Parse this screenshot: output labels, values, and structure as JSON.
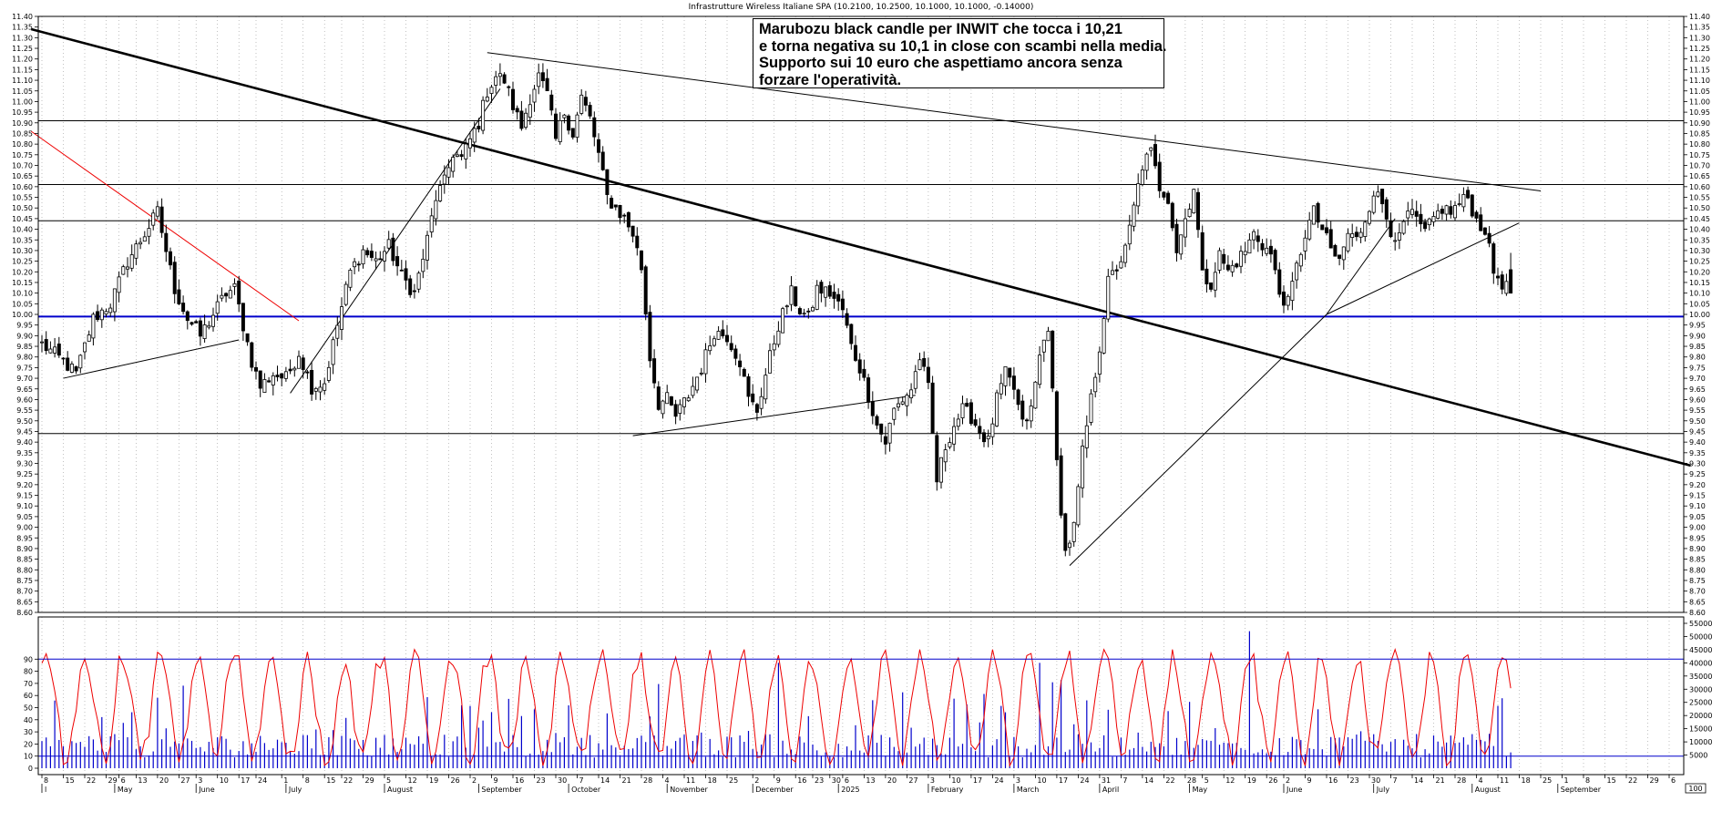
{
  "chart_data": [
    {
      "type": "candlestick",
      "title": "Infrastrutture Wireless  Italiane SPA (10.2100, 10.2500, 10.1000, 10.1000, -0.14000)",
      "ylim": [
        8.6,
        11.4
      ],
      "y_ticks": [
        "11.40",
        "11.35",
        "11.30",
        "11.25",
        "11.20",
        "11.15",
        "11.10",
        "11.05",
        "11.00",
        "10.95",
        "10.90",
        "10.85",
        "10.80",
        "10.75",
        "10.70",
        "10.65",
        "10.60",
        "10.55",
        "10.50",
        "10.45",
        "10.40",
        "10.35",
        "10.30",
        "10.25",
        "10.20",
        "10.15",
        "10.10",
        "10.05",
        "10.00",
        "9.95",
        "9.90",
        "9.85",
        "9.80",
        "9.75",
        "9.70",
        "9.65",
        "9.60",
        "9.55",
        "9.50",
        "9.45",
        "9.40",
        "9.35",
        "9.30",
        "9.25",
        "9.20",
        "9.15",
        "9.10",
        "9.05",
        "9.00",
        "8.95",
        "8.90",
        "8.85",
        "8.80",
        "8.75",
        "8.70",
        "8.65",
        "8.60"
      ],
      "grid": "vertical-dotted",
      "horizontal_levels": [
        10.91,
        10.61,
        10.44,
        9.44
      ],
      "support_level": 9.99,
      "annotation": [
        "Marubozu black candle per INWIT che tocca i 10,21",
        "e torna negativa su 10,1 in close con scambi nella media.",
        "Supporto sui 10 euro che aspettiamo ancora senza",
        "forzare l'operatività."
      ],
      "anchors": [
        [
          0,
          9.86
        ],
        [
          5,
          9.78
        ],
        [
          8,
          9.72
        ],
        [
          12,
          9.98
        ],
        [
          16,
          10.05
        ],
        [
          20,
          10.25
        ],
        [
          24,
          10.38
        ],
        [
          27,
          10.48
        ],
        [
          29,
          10.3
        ],
        [
          31,
          10.12
        ],
        [
          34,
          9.98
        ],
        [
          37,
          9.9
        ],
        [
          40,
          10.0
        ],
        [
          43,
          10.1
        ],
        [
          45,
          10.12
        ],
        [
          47,
          9.95
        ],
        [
          49,
          9.78
        ],
        [
          51,
          9.66
        ],
        [
          54,
          9.72
        ],
        [
          57,
          9.7
        ],
        [
          60,
          9.82
        ],
        [
          63,
          9.66
        ],
        [
          66,
          9.68
        ],
        [
          69,
          9.95
        ],
        [
          72,
          10.2
        ],
        [
          75,
          10.3
        ],
        [
          78,
          10.25
        ],
        [
          81,
          10.32
        ],
        [
          84,
          10.18
        ],
        [
          87,
          10.1
        ],
        [
          90,
          10.35
        ],
        [
          92,
          10.55
        ],
        [
          94,
          10.62
        ],
        [
          96,
          10.76
        ],
        [
          98,
          10.73
        ],
        [
          100,
          10.82
        ],
        [
          102,
          10.9
        ],
        [
          104,
          11.05
        ],
        [
          106,
          11.12
        ],
        [
          108,
          11.1
        ],
        [
          110,
          10.98
        ],
        [
          112,
          10.88
        ],
        [
          114,
          11.02
        ],
        [
          116,
          11.12
        ],
        [
          118,
          11.03
        ],
        [
          120,
          10.82
        ],
        [
          122,
          10.95
        ],
        [
          124,
          10.85
        ],
        [
          126,
          11.02
        ],
        [
          128,
          10.92
        ],
        [
          130,
          10.75
        ],
        [
          132,
          10.55
        ],
        [
          134,
          10.5
        ],
        [
          136,
          10.45
        ],
        [
          138,
          10.38
        ],
        [
          140,
          10.22
        ],
        [
          142,
          9.8
        ],
        [
          144,
          9.58
        ],
        [
          146,
          9.6
        ],
        [
          148,
          9.52
        ],
        [
          151,
          9.62
        ],
        [
          154,
          9.75
        ],
        [
          157,
          9.92
        ],
        [
          160,
          9.9
        ],
        [
          163,
          9.78
        ],
        [
          165,
          9.6
        ],
        [
          167,
          9.55
        ],
        [
          170,
          9.8
        ],
        [
          172,
          9.95
        ],
        [
          175,
          10.1
        ],
        [
          177,
          10.02
        ],
        [
          179,
          9.98
        ],
        [
          181,
          10.12
        ],
        [
          184,
          10.1
        ],
        [
          187,
          10.02
        ],
        [
          189,
          9.85
        ],
        [
          191,
          9.75
        ],
        [
          193,
          9.62
        ],
        [
          195,
          9.48
        ],
        [
          197,
          9.4
        ],
        [
          199,
          9.55
        ],
        [
          201,
          9.6
        ],
        [
          203,
          9.65
        ],
        [
          205,
          9.8
        ],
        [
          207,
          9.65
        ],
        [
          209,
          9.22
        ],
        [
          211,
          9.38
        ],
        [
          213,
          9.48
        ],
        [
          215,
          9.55
        ],
        [
          217,
          9.52
        ],
        [
          219,
          9.45
        ],
        [
          221,
          9.4
        ],
        [
          223,
          9.6
        ],
        [
          225,
          9.72
        ],
        [
          227,
          9.65
        ],
        [
          229,
          9.48
        ],
        [
          231,
          9.55
        ],
        [
          233,
          9.8
        ],
        [
          235,
          9.95
        ],
        [
          237,
          9.3
        ],
        [
          239,
          8.88
        ],
        [
          241,
          9.0
        ],
        [
          243,
          9.35
        ],
        [
          245,
          9.6
        ],
        [
          247,
          9.85
        ],
        [
          249,
          10.15
        ],
        [
          251,
          10.22
        ],
        [
          253,
          10.3
        ],
        [
          255,
          10.5
        ],
        [
          257,
          10.7
        ],
        [
          259,
          10.76
        ],
        [
          261,
          10.6
        ],
        [
          263,
          10.55
        ],
        [
          265,
          10.3
        ],
        [
          267,
          10.45
        ],
        [
          269,
          10.6
        ],
        [
          271,
          10.18
        ],
        [
          273,
          10.15
        ],
        [
          275,
          10.28
        ],
        [
          277,
          10.2
        ],
        [
          279,
          10.25
        ],
        [
          281,
          10.3
        ],
        [
          283,
          10.38
        ],
        [
          285,
          10.33
        ],
        [
          287,
          10.28
        ],
        [
          289,
          10.1
        ],
        [
          291,
          10.05
        ],
        [
          293,
          10.22
        ],
        [
          295,
          10.38
        ],
        [
          297,
          10.48
        ],
        [
          299,
          10.4
        ],
        [
          301,
          10.3
        ],
        [
          303,
          10.25
        ],
        [
          305,
          10.38
        ],
        [
          307,
          10.35
        ],
        [
          309,
          10.45
        ],
        [
          311,
          10.58
        ],
        [
          313,
          10.52
        ],
        [
          315,
          10.4
        ],
        [
          317,
          10.35
        ],
        [
          319,
          10.48
        ],
        [
          321,
          10.44
        ],
        [
          323,
          10.38
        ],
        [
          325,
          10.45
        ],
        [
          327,
          10.5
        ],
        [
          329,
          10.48
        ],
        [
          331,
          10.52
        ],
        [
          333,
          10.55
        ],
        [
          335,
          10.44
        ],
        [
          337,
          10.4
        ],
        [
          339,
          10.2
        ],
        [
          341,
          10.15
        ],
        [
          343,
          10.1
        ]
      ],
      "oscillator": {
        "ylim": [
          0,
          100
        ],
        "y_ticks": [
          "90",
          "80",
          "70",
          "60",
          "50",
          "40",
          "30",
          "20",
          "10",
          "0"
        ],
        "levels": [
          90,
          10
        ]
      },
      "volume": {
        "ylim": [
          0,
          55000
        ],
        "y_ticks": [
          "55000",
          "50000",
          "45000",
          "40000",
          "35000",
          "30000",
          "25000",
          "20000",
          "15000",
          "10000",
          "5000"
        ]
      },
      "x_axis": {
        "day_labels": [
          [
            0,
            "8"
          ],
          [
            5,
            "15"
          ],
          [
            10,
            "22"
          ],
          [
            15,
            "29"
          ],
          [
            18,
            "6"
          ],
          [
            22,
            "13"
          ],
          [
            27,
            "20"
          ],
          [
            32,
            "27"
          ],
          [
            36,
            "3"
          ],
          [
            41,
            "10"
          ],
          [
            46,
            "17"
          ],
          [
            50,
            "24"
          ],
          [
            56,
            "1"
          ],
          [
            61,
            "8"
          ],
          [
            66,
            "15"
          ],
          [
            70,
            "22"
          ],
          [
            75,
            "29"
          ],
          [
            80,
            "5"
          ],
          [
            85,
            "12"
          ],
          [
            90,
            "19"
          ],
          [
            95,
            "26"
          ],
          [
            100,
            "2"
          ],
          [
            105,
            "9"
          ],
          [
            110,
            "16"
          ],
          [
            115,
            "23"
          ],
          [
            120,
            "30"
          ],
          [
            125,
            "7"
          ],
          [
            130,
            "14"
          ],
          [
            135,
            "21"
          ],
          [
            140,
            "28"
          ],
          [
            145,
            "4"
          ],
          [
            150,
            "11"
          ],
          [
            155,
            "18"
          ],
          [
            160,
            "25"
          ],
          [
            166,
            "2"
          ],
          [
            171,
            "9"
          ],
          [
            176,
            "16"
          ],
          [
            180,
            "23"
          ],
          [
            184,
            "30"
          ],
          [
            187,
            "6"
          ],
          [
            192,
            "13"
          ],
          [
            197,
            "20"
          ],
          [
            202,
            "27"
          ],
          [
            207,
            "3"
          ],
          [
            212,
            "10"
          ],
          [
            217,
            "17"
          ],
          [
            222,
            "24"
          ],
          [
            227,
            "3"
          ],
          [
            232,
            "10"
          ],
          [
            237,
            "17"
          ],
          [
            242,
            "24"
          ],
          [
            247,
            "31"
          ],
          [
            252,
            "7"
          ],
          [
            257,
            "14"
          ],
          [
            262,
            "22"
          ],
          [
            267,
            "28"
          ],
          [
            271,
            "5"
          ],
          [
            276,
            "12"
          ],
          [
            281,
            "19"
          ],
          [
            286,
            "26"
          ],
          [
            290,
            "2"
          ],
          [
            295,
            "9"
          ],
          [
            300,
            "16"
          ],
          [
            305,
            "23"
          ],
          [
            310,
            "30"
          ],
          [
            315,
            "7"
          ],
          [
            320,
            "14"
          ],
          [
            325,
            "21"
          ],
          [
            330,
            "28"
          ],
          [
            335,
            "4"
          ],
          [
            340,
            "11"
          ],
          [
            345,
            "18"
          ],
          [
            350,
            "25"
          ],
          [
            355,
            "1"
          ],
          [
            360,
            "8"
          ],
          [
            365,
            "15"
          ],
          [
            370,
            "22"
          ],
          [
            375,
            "29"
          ],
          [
            380,
            "6"
          ]
        ],
        "month_labels": [
          [
            0,
            "l"
          ],
          [
            17,
            "May"
          ],
          [
            36,
            "June"
          ],
          [
            57,
            "July"
          ],
          [
            80,
            "August"
          ],
          [
            102,
            "September"
          ],
          [
            123,
            "October"
          ],
          [
            146,
            "November"
          ],
          [
            166,
            "December"
          ],
          [
            186,
            "2025"
          ],
          [
            207,
            "February"
          ],
          [
            227,
            "March"
          ],
          [
            247,
            "April"
          ],
          [
            268,
            "May"
          ],
          [
            290,
            "June"
          ],
          [
            311,
            "July"
          ],
          [
            334,
            "August"
          ],
          [
            354,
            "September"
          ]
        ],
        "scale_label": "100"
      }
    }
  ]
}
